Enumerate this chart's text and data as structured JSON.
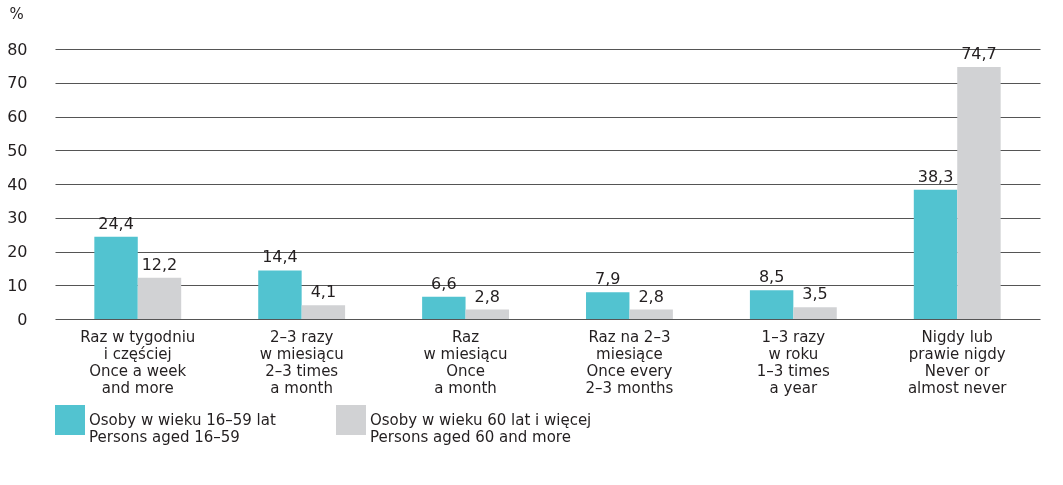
{
  "chart_data": {
    "type": "bar",
    "ylabel": "%",
    "categories": [
      "Raz w tygodniu\ni częściej\nOnce a week\nand more",
      "2–3 razy\nw miesiącu\n2–3 times\na month",
      "Raz\nw miesiącu\nOnce\na month",
      "Raz na 2–3\nmiesiące\nOnce every\n2–3 months",
      "1–3 razy\nw roku\n1–3 times\na year",
      "Nigdy lub\nprawie nigdy\nNever or\nalmost never"
    ],
    "series": [
      {
        "name": "Osoby w wieku 16–59 lat\nPersons aged 16–59",
        "color": "#52c3d0",
        "values": [
          24.4,
          14.4,
          6.6,
          7.9,
          8.5,
          38.3
        ],
        "value_labels": [
          "24,4",
          "14,4",
          "6,6",
          "7,9",
          "8,5",
          "38,3"
        ]
      },
      {
        "name": "Osoby w wieku 60 lat i więcej\nPersons aged 60 and more",
        "color": "#d1d2d4",
        "values": [
          12.2,
          4.1,
          2.8,
          2.8,
          3.5,
          74.7
        ],
        "value_labels": [
          "12,2",
          "4,1",
          "2,8",
          "2,8",
          "3,5",
          "74,7"
        ]
      }
    ],
    "ylim": [
      0,
      80
    ],
    "yticks": [
      0,
      10,
      20,
      30,
      40,
      50,
      60,
      70,
      80
    ],
    "grid": "y",
    "legend": "bottom"
  }
}
